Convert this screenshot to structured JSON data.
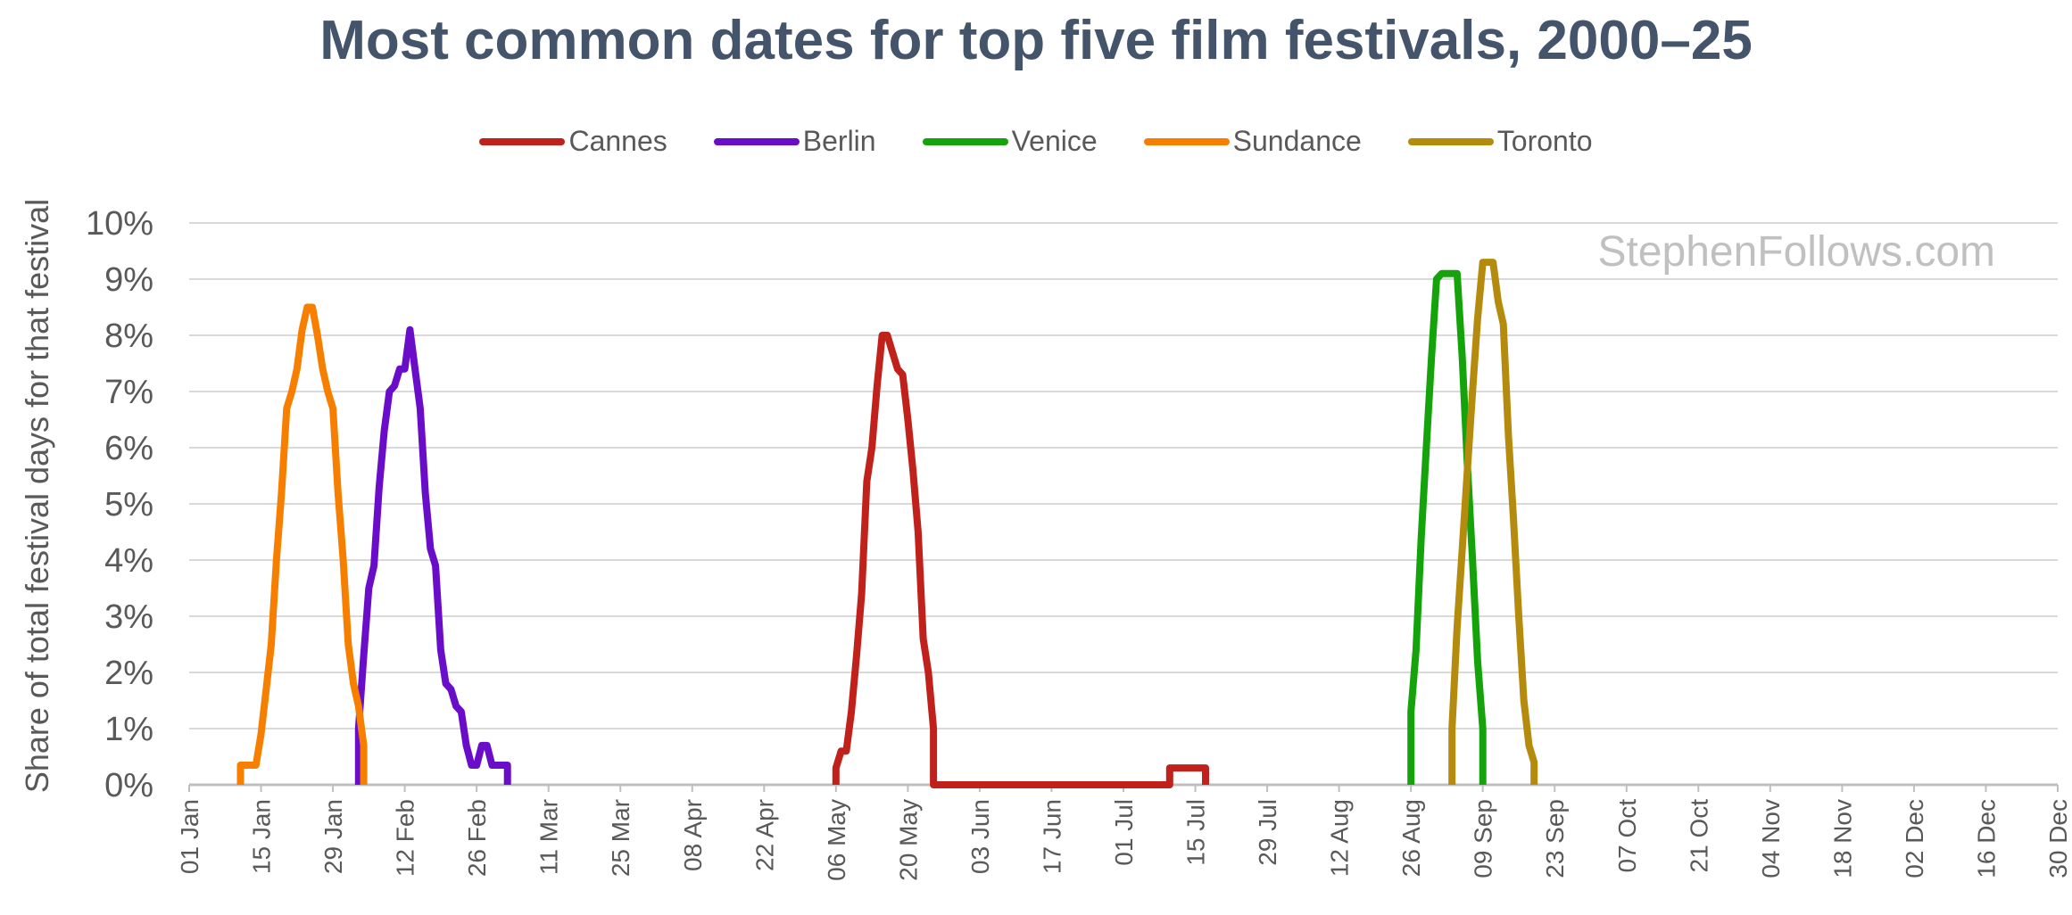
{
  "chart_data": {
    "type": "line",
    "title": "Most common dates for top five film festivals, 2000–25",
    "ylabel": "Share of total festival days for that festival",
    "xlabel": "",
    "watermark": "StephenFollows.com",
    "ylim": [
      0,
      10
    ],
    "y_ticks": [
      "0%",
      "1%",
      "2%",
      "3%",
      "4%",
      "5%",
      "6%",
      "7%",
      "8%",
      "9%",
      "10%"
    ],
    "xlim": [
      "01 Jan",
      "30 Dec"
    ],
    "x_ticks": [
      "01 Jan",
      "15 Jan",
      "29 Jan",
      "12 Feb",
      "26 Feb",
      "11 Mar",
      "25 Mar",
      "08 Apr",
      "22 Apr",
      "06 May",
      "20 May",
      "03 Jun",
      "17 Jun",
      "01 Jul",
      "15 Jul",
      "29 Jul",
      "12 Aug",
      "26 Aug",
      "09 Sep",
      "23 Sep",
      "07 Oct",
      "21 Oct",
      "04 Nov",
      "18 Nov",
      "02 Dec",
      "16 Dec",
      "30 Dec"
    ],
    "grid": true,
    "legend_position": "top",
    "series": [
      {
        "name": "Cannes",
        "color": "#c0221b",
        "points": [
          [
            "06 May",
            0
          ],
          [
            "06 May",
            0.3
          ],
          [
            "07 May",
            0.6
          ],
          [
            "08 May",
            0.6
          ],
          [
            "09 May",
            1.3
          ],
          [
            "10 May",
            2.3
          ],
          [
            "11 May",
            3.4
          ],
          [
            "12 May",
            5.4
          ],
          [
            "13 May",
            6.0
          ],
          [
            "14 May",
            7.1
          ],
          [
            "15 May",
            8.0
          ],
          [
            "16 May",
            8.0
          ],
          [
            "17 May",
            7.7
          ],
          [
            "18 May",
            7.4
          ],
          [
            "19 May",
            7.3
          ],
          [
            "20 May",
            6.5
          ],
          [
            "21 May",
            5.6
          ],
          [
            "22 May",
            4.5
          ],
          [
            "23 May",
            2.6
          ],
          [
            "24 May",
            2.0
          ],
          [
            "25 May",
            1.0
          ],
          [
            "25 May",
            0
          ],
          [
            "10 Jul",
            0
          ],
          [
            "10 Jul",
            0.3
          ],
          [
            "17 Jul",
            0.3
          ],
          [
            "17 Jul",
            0
          ]
        ]
      },
      {
        "name": "Berlin",
        "color": "#6a0dc9",
        "points": [
          [
            "03 Feb",
            0
          ],
          [
            "03 Feb",
            1.0
          ],
          [
            "04 Feb",
            2.3
          ],
          [
            "05 Feb",
            3.5
          ],
          [
            "06 Feb",
            3.9
          ],
          [
            "07 Feb",
            5.3
          ],
          [
            "08 Feb",
            6.3
          ],
          [
            "09 Feb",
            7.0
          ],
          [
            "10 Feb",
            7.1
          ],
          [
            "11 Feb",
            7.4
          ],
          [
            "12 Feb",
            7.4
          ],
          [
            "13 Feb",
            8.1
          ],
          [
            "14 Feb",
            7.4
          ],
          [
            "15 Feb",
            6.7
          ],
          [
            "16 Feb",
            5.2
          ],
          [
            "17 Feb",
            4.2
          ],
          [
            "18 Feb",
            3.9
          ],
          [
            "19 Feb",
            2.4
          ],
          [
            "20 Feb",
            1.8
          ],
          [
            "21 Feb",
            1.7
          ],
          [
            "22 Feb",
            1.4
          ],
          [
            "23 Feb",
            1.3
          ],
          [
            "24 Feb",
            0.7
          ],
          [
            "25 Feb",
            0.35
          ],
          [
            "26 Feb",
            0.35
          ],
          [
            "27 Feb",
            0.7
          ],
          [
            "28 Feb",
            0.7
          ],
          [
            "29 Feb",
            0.35
          ],
          [
            "01 Mar",
            0.35
          ],
          [
            "02 Mar",
            0.35
          ],
          [
            "03 Mar",
            0.35
          ],
          [
            "03 Mar",
            0
          ]
        ]
      },
      {
        "name": "Venice",
        "color": "#14a30a",
        "points": [
          [
            "26 Aug",
            0
          ],
          [
            "26 Aug",
            1.3
          ],
          [
            "27 Aug",
            2.4
          ],
          [
            "28 Aug",
            4.4
          ],
          [
            "29 Aug",
            6.0
          ],
          [
            "30 Aug",
            7.6
          ],
          [
            "31 Aug",
            9.0
          ],
          [
            "01 Sep",
            9.1
          ],
          [
            "02 Sep",
            9.1
          ],
          [
            "03 Sep",
            9.1
          ],
          [
            "04 Sep",
            9.1
          ],
          [
            "05 Sep",
            7.6
          ],
          [
            "06 Sep",
            5.7
          ],
          [
            "07 Sep",
            4.0
          ],
          [
            "08 Sep",
            2.2
          ],
          [
            "09 Sep",
            1.0
          ],
          [
            "09 Sep",
            0
          ]
        ]
      },
      {
        "name": "Sundance",
        "color": "#f77f00",
        "points": [
          [
            "11 Jan",
            0
          ],
          [
            "11 Jan",
            0.35
          ],
          [
            "12 Jan",
            0.35
          ],
          [
            "13 Jan",
            0.35
          ],
          [
            "14 Jan",
            0.35
          ],
          [
            "15 Jan",
            0.9
          ],
          [
            "16 Jan",
            1.7
          ],
          [
            "17 Jan",
            2.5
          ],
          [
            "18 Jan",
            4.0
          ],
          [
            "19 Jan",
            5.2
          ],
          [
            "20 Jan",
            6.7
          ],
          [
            "21 Jan",
            7.0
          ],
          [
            "22 Jan",
            7.4
          ],
          [
            "23 Jan",
            8.1
          ],
          [
            "24 Jan",
            8.5
          ],
          [
            "25 Jan",
            8.5
          ],
          [
            "26 Jan",
            8.0
          ],
          [
            "27 Jan",
            7.4
          ],
          [
            "28 Jan",
            7.0
          ],
          [
            "29 Jan",
            6.7
          ],
          [
            "30 Jan",
            5.2
          ],
          [
            "31 Jan",
            4.0
          ],
          [
            "01 Feb",
            2.5
          ],
          [
            "02 Feb",
            1.8
          ],
          [
            "03 Feb",
            1.4
          ],
          [
            "04 Feb",
            0.7
          ],
          [
            "04 Feb",
            0
          ]
        ]
      },
      {
        "name": "Toronto",
        "color": "#b48b0c",
        "points": [
          [
            "03 Sep",
            0
          ],
          [
            "03 Sep",
            1.0
          ],
          [
            "04 Sep",
            2.8
          ],
          [
            "05 Sep",
            4.2
          ],
          [
            "06 Sep",
            5.6
          ],
          [
            "07 Sep",
            7.0
          ],
          [
            "08 Sep",
            8.3
          ],
          [
            "09 Sep",
            9.3
          ],
          [
            "10 Sep",
            9.3
          ],
          [
            "11 Sep",
            9.3
          ],
          [
            "12 Sep",
            8.6
          ],
          [
            "13 Sep",
            8.2
          ],
          [
            "14 Sep",
            6.2
          ],
          [
            "15 Sep",
            4.7
          ],
          [
            "16 Sep",
            3.0
          ],
          [
            "17 Sep",
            1.5
          ],
          [
            "18 Sep",
            0.7
          ],
          [
            "19 Sep",
            0.4
          ],
          [
            "19 Sep",
            0
          ]
        ]
      }
    ]
  }
}
